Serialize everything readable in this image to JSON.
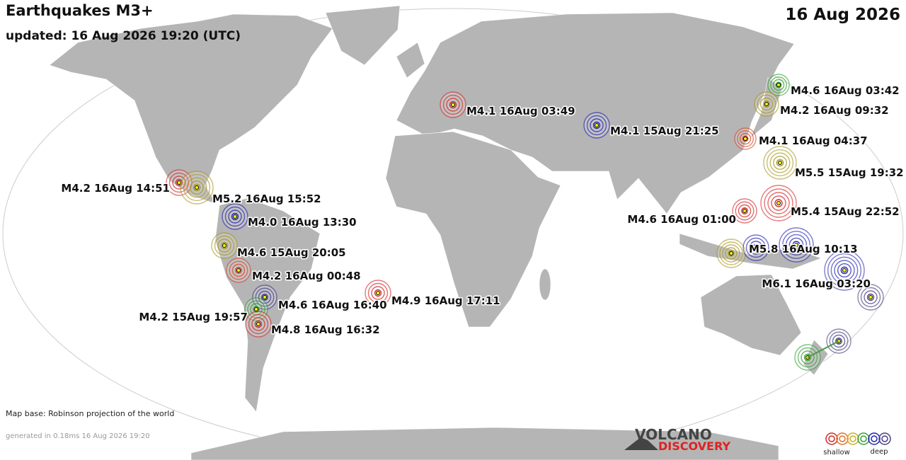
{
  "header": {
    "title": "Earthquakes M3+",
    "updated": "updated: 16 Aug 2026 19:20 (UTC)",
    "date": "16 Aug 2026"
  },
  "quakes": [
    {
      "label": "M4.6 16Aug 03:42",
      "color": "#33a033"
    },
    {
      "label": "M4.2 16Aug 09:32",
      "color": "#a8961e"
    },
    {
      "label": "M4.1 16Aug 03:49",
      "color": "#d42a2a"
    },
    {
      "label": "M4.1 15Aug 21:25",
      "color": "#2424b0"
    },
    {
      "label": "M4.1 16Aug 04:37",
      "color": "#d8452a"
    },
    {
      "label": "M5.5 15Aug 19:32",
      "color": "#a8961e"
    },
    {
      "label": "M4.2 16Aug 14:51",
      "color": "#d42a2a"
    },
    {
      "label": "M5.2 16Aug 15:52",
      "color": "#a8961e"
    },
    {
      "label": "M5.4 15Aug 22:52",
      "color": "#d42a2a"
    },
    {
      "label": "M4.6 16Aug 01:00",
      "color": "#d42a2a"
    },
    {
      "label": "M4.0 16Aug 13:30",
      "color": "#2424b0"
    },
    {
      "label": "M5.8 16Aug 10:13",
      "color": "#2424b0"
    },
    {
      "label": "M4.6 15Aug 20:05",
      "color": "#a8961e"
    },
    {
      "label": "M4.2 16Aug 00:48",
      "color": "#d8452a"
    },
    {
      "label": "M6.1 16Aug 03:20",
      "color": "#2424b0"
    },
    {
      "label": "M4.9 16Aug 17:11",
      "color": "#d42a2a"
    },
    {
      "label": "M4.6 16Aug 16:40",
      "color": "#3a3590"
    },
    {
      "label": "M4.2 15Aug 19:57",
      "color": "#33a033"
    },
    {
      "label": "M4.8 16Aug 16:32",
      "color": "#d42a2a"
    }
  ],
  "footer": {
    "map_base": "Map base: Robinson projection of the world",
    "generated": "generated in 0.18ms 16 Aug 2026 19:20",
    "logo_top": "VOLCANO",
    "logo_bottom": "DISCOVERY",
    "legend_shallow": "shallow",
    "legend_deep": "deep"
  }
}
